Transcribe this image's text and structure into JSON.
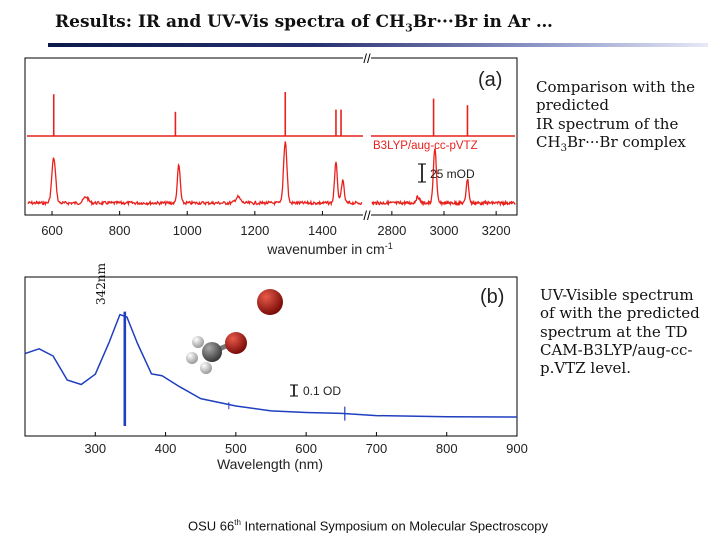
{
  "slide": {
    "title_pre": "Results: IR and UV-Vis spectra of CH",
    "title_sub": "3",
    "title_post": "Br···Br in Ar …",
    "ir_caption_l1": "Comparison with the",
    "ir_caption_l2": "predicted",
    "ir_caption_l3": "IR spectrum of the",
    "ir_caption_l4_pre": "CH",
    "ir_caption_l4_sub": "3",
    "ir_caption_l4_post": "Br···Br complex",
    "uv_caption_l1": "UV-Visible spectrum",
    "uv_caption_l2": "of with the predicted",
    "uv_caption_l3": "spectrum at the TD",
    "uv_caption_l4": "CAM-B3LYP/aug-cc-",
    "uv_caption_l5": "p.VTZ level.",
    "vertical_label": "342nm",
    "footer_pre": "OSU 66",
    "footer_sup": "th",
    "footer_post": " International Symposium on Molecular Spectroscopy"
  },
  "chart_data": [
    {
      "type": "line",
      "panel_label": "(a)",
      "xlabel": "wavenumber in cm",
      "xlabel_sup": "-1",
      "x_ticks_left": [
        "600",
        "800",
        "1000",
        "1200",
        "1400"
      ],
      "x_ticks_right": [
        "2800",
        "3000",
        "3200"
      ],
      "xlim_left": [
        520,
        1520
      ],
      "xlim_right": [
        2720,
        3280
      ],
      "break_marker": "//",
      "legend": "B3LYP/aug-cc-pVTZ",
      "scale_bar": "25 mOD",
      "series": [
        {
          "name": "B3LYP/aug-cc-pVTZ predicted",
          "color": "#e8211d",
          "sticks": [
            {
              "x": 605,
              "rel": 0.95
            },
            {
              "x": 965,
              "rel": 0.55
            },
            {
              "x": 1290,
              "rel": 1.0
            },
            {
              "x": 1440,
              "rel": 0.6
            },
            {
              "x": 1455,
              "rel": 0.6
            },
            {
              "x": 2960,
              "rel": 0.85
            },
            {
              "x": 3090,
              "rel": 0.7
            }
          ]
        },
        {
          "name": "experimental",
          "color": "#e8211d"
        }
      ]
    },
    {
      "type": "line",
      "panel_label": "(b)",
      "xlabel": "Wavelength (nm)",
      "x_ticks": [
        "300",
        "400",
        "500",
        "600",
        "700",
        "800",
        "900"
      ],
      "xlim": [
        200,
        900
      ],
      "scale_bar": "0.1 OD",
      "series": [
        {
          "name": "experimental UV-Vis",
          "color": "#1f3fbf",
          "points": [
            [
              200,
              0.62
            ],
            [
              220,
              0.66
            ],
            [
              240,
              0.6
            ],
            [
              260,
              0.4
            ],
            [
              280,
              0.37
            ],
            [
              300,
              0.45
            ],
            [
              320,
              0.72
            ],
            [
              335,
              0.95
            ],
            [
              345,
              0.93
            ],
            [
              360,
              0.7
            ],
            [
              380,
              0.45
            ],
            [
              395,
              0.43
            ],
            [
              420,
              0.34
            ],
            [
              450,
              0.24
            ],
            [
              500,
              0.18
            ],
            [
              550,
              0.15
            ],
            [
              600,
              0.13
            ],
            [
              650,
              0.12
            ],
            [
              700,
              0.11
            ],
            [
              800,
              0.1
            ],
            [
              900,
              0.1
            ]
          ]
        },
        {
          "name": "TD CAM-B3LYP predicted",
          "color": "#1f3fbf",
          "sticks": [
            {
              "x": 342,
              "rel": 1.0
            }
          ]
        }
      ]
    }
  ]
}
